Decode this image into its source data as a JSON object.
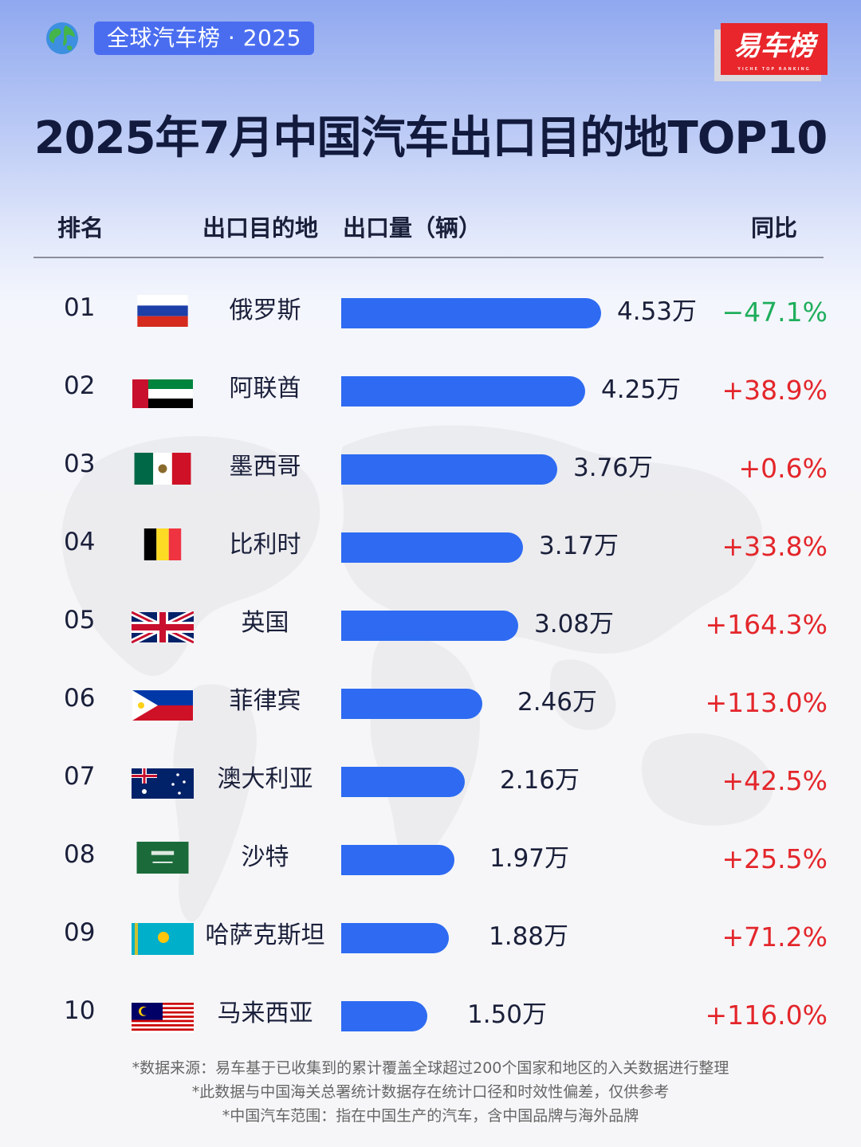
{
  "header": {
    "badge": "全球汽车榜 · 2025",
    "logo": "易车榜",
    "title": "2025年7月中国汽车出口目的地TOP10"
  },
  "columns": {
    "rank": "排名",
    "destination": "出口目的地",
    "volume": "出口量（辆）",
    "yoy": "同比"
  },
  "colors": {
    "bar": "#2e6bf2",
    "positive": "#e3262b",
    "negative": "#1fae5c"
  },
  "chart_data": {
    "type": "bar",
    "title": "2025年7月中国汽车出口目的地TOP10",
    "unit": "万",
    "rows": [
      {
        "rank": "01",
        "country": "俄罗斯",
        "flag": "russia-flag-icon",
        "value": 4.53,
        "label": "4.53万",
        "yoy": "−47.1%"
      },
      {
        "rank": "02",
        "country": "阿联酋",
        "flag": "uae-flag-icon",
        "value": 4.25,
        "label": "4.25万",
        "yoy": "+38.9%"
      },
      {
        "rank": "03",
        "country": "墨西哥",
        "flag": "mexico-flag-icon",
        "value": 3.76,
        "label": "3.76万",
        "yoy": "+0.6%"
      },
      {
        "rank": "04",
        "country": "比利时",
        "flag": "belgium-flag-icon",
        "value": 3.17,
        "label": "3.17万",
        "yoy": "+33.8%"
      },
      {
        "rank": "05",
        "country": "英国",
        "flag": "uk-flag-icon",
        "value": 3.08,
        "label": "3.08万",
        "yoy": "+164.3%"
      },
      {
        "rank": "06",
        "country": "菲律宾",
        "flag": "philippines-flag-icon",
        "value": 2.46,
        "label": "2.46万",
        "yoy": "+113.0%"
      },
      {
        "rank": "07",
        "country": "澳大利亚",
        "flag": "australia-flag-icon",
        "value": 2.16,
        "label": "2.16万",
        "yoy": "+42.5%"
      },
      {
        "rank": "08",
        "country": "沙特",
        "flag": "saudi-flag-icon",
        "value": 1.97,
        "label": "1.97万",
        "yoy": "+25.5%"
      },
      {
        "rank": "09",
        "country": "哈萨克斯坦",
        "flag": "kazakhstan-flag-icon",
        "value": 1.88,
        "label": "1.88万",
        "yoy": "+71.2%"
      },
      {
        "rank": "10",
        "country": "马来西亚",
        "flag": "malaysia-flag-icon",
        "value": 1.5,
        "label": "1.50万",
        "yoy": "+116.0%"
      }
    ]
  },
  "footer": {
    "line1": "*数据来源：易车基于已收集到的累计覆盖全球超过200个国家和地区的入关数据进行整理",
    "line2": "*此数据与中国海关总署统计数据存在统计口径和时效性偏差，仅供参考",
    "line3": "*中国汽车范围：指在中国生产的汽车，含中国品牌与海外品牌"
  }
}
